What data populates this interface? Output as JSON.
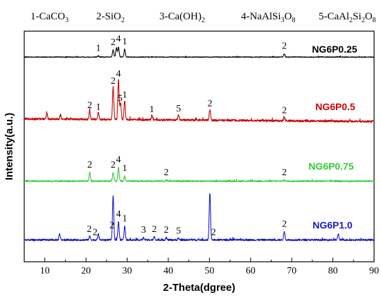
{
  "chart_data": {
    "type": "line",
    "title": "",
    "xlabel": "2-Theta(dgree)",
    "ylabel": "Intensity(a.u.)",
    "xlim": [
      5,
      90
    ],
    "x_ticks": [
      10,
      20,
      30,
      40,
      50,
      60,
      70,
      80,
      90
    ],
    "y_ticks_shown": false,
    "grid": false,
    "phase_legend": [
      {
        "base": "1-CaCO",
        "sub": "3"
      },
      {
        "base": "2-SiO",
        "sub": "2"
      },
      {
        "base": "3-Ca(OH)",
        "sub": "2"
      },
      {
        "base": "4-NaAlSi",
        "sub": "3",
        "base2": "O",
        "sub2": "8"
      },
      {
        "base": "5-CaAl",
        "sub": "2",
        "base2": "Si",
        "sub2": "2",
        "base3": "O",
        "sub3": "8"
      }
    ],
    "series": [
      {
        "name": "NG6P0.25",
        "color": "#000000",
        "baseline": 0.38,
        "peaks": [
          [
            23.0,
            1.2
          ],
          [
            26.6,
            6.5
          ],
          [
            27.4,
            8.5
          ],
          [
            27.9,
            9.5
          ],
          [
            29.4,
            7.0
          ],
          [
            68.2,
            3.0
          ]
        ],
        "peak_labels": [
          {
            "text": "1",
            "x": 23.0
          },
          {
            "text": "2",
            "x": 26.6
          },
          {
            "text": "4",
            "x": 27.9
          },
          {
            "text": "1",
            "x": 29.4
          },
          {
            "text": "2",
            "x": 68.2
          }
        ]
      },
      {
        "name": "NG6P0.5",
        "color": "#cc0000",
        "baseline": 0.52,
        "peaks": [
          [
            10.5,
            6
          ],
          [
            13.8,
            5
          ],
          [
            20.9,
            10
          ],
          [
            23.0,
            8
          ],
          [
            26.6,
            38
          ],
          [
            27.9,
            46
          ],
          [
            28.4,
            20
          ],
          [
            29.4,
            22
          ],
          [
            36.0,
            5
          ],
          [
            42.5,
            6
          ],
          [
            50.1,
            12
          ],
          [
            68.2,
            4
          ]
        ],
        "peak_labels": [
          {
            "text": "2",
            "x": 20.9
          },
          {
            "text": "1",
            "x": 23.0
          },
          {
            "text": "2",
            "x": 26.6
          },
          {
            "text": "4",
            "x": 27.9
          },
          {
            "text": "5",
            "x": 28.3
          },
          {
            "text": "1",
            "x": 29.4
          },
          {
            "text": "1",
            "x": 36.0
          },
          {
            "text": "5",
            "x": 42.5
          },
          {
            "text": "2",
            "x": 50.1
          },
          {
            "text": "2",
            "x": 68.2
          }
        ]
      },
      {
        "name": "NG6P0.75",
        "color": "#33cc33",
        "baseline": 0.35,
        "peaks": [
          [
            20.9,
            10
          ],
          [
            26.6,
            10
          ],
          [
            27.9,
            16
          ],
          [
            29.4,
            6
          ],
          [
            39.5,
            1.2
          ],
          [
            68.2,
            1.2
          ]
        ],
        "peak_labels": [
          {
            "text": "2",
            "x": 20.9
          },
          {
            "text": "2",
            "x": 26.6
          },
          {
            "text": "4",
            "x": 27.9
          },
          {
            "text": "1",
            "x": 29.4
          },
          {
            "text": "2",
            "x": 39.5
          },
          {
            "text": "2",
            "x": 68.2
          }
        ]
      },
      {
        "name": "NG6P1.0",
        "color": "#1a1acc",
        "baseline": 0.5,
        "peaks": [
          [
            13.6,
            8
          ],
          [
            20.9,
            5
          ],
          [
            23.0,
            8
          ],
          [
            26.6,
            58
          ],
          [
            27.9,
            24
          ],
          [
            29.4,
            18
          ],
          [
            34.0,
            3
          ],
          [
            36.6,
            4
          ],
          [
            39.5,
            3
          ],
          [
            42.5,
            2
          ],
          [
            50.1,
            62
          ],
          [
            68.2,
            11
          ],
          [
            81.3,
            8
          ]
        ],
        "peak_labels": [
          {
            "text": "2",
            "x": 20.8
          },
          {
            "text": "2",
            "x": 22.2
          },
          {
            "text": "2",
            "x": 26.3
          },
          {
            "text": "4",
            "x": 27.9
          },
          {
            "text": "1",
            "x": 29.4
          },
          {
            "text": "3",
            "x": 34.0
          },
          {
            "text": "2",
            "x": 36.6
          },
          {
            "text": "2",
            "x": 39.5
          },
          {
            "text": "5",
            "x": 42.5
          },
          {
            "text": "2",
            "x": 51.0
          },
          {
            "text": "2",
            "x": 68.2
          }
        ]
      }
    ]
  }
}
